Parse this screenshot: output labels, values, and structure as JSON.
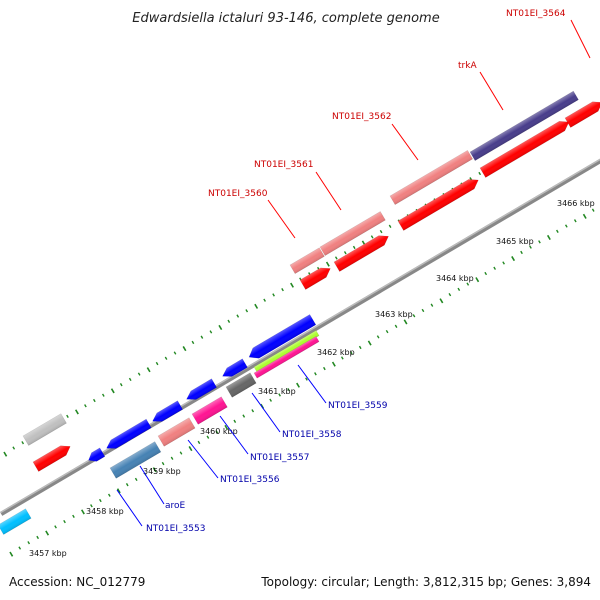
{
  "title": "Edwardsiella ictaluri 93-146, complete genome",
  "footer": {
    "accession": "Accession: NC_012779",
    "summary": "Topology: circular; Length: 3,812,315 bp; Genes: 3,894"
  },
  "kbp_labels": [
    "3457 kbp",
    "3458 kbp",
    "3459 kbp",
    "3460 kbp",
    "3461 kbp",
    "3462 kbp",
    "3463 kbp",
    "3464 kbp",
    "3465 kbp",
    "3466 kbp"
  ],
  "top_labels": [
    "NT01EI_3564",
    "trkA",
    "NT01EI_3562",
    "NT01EI_3561",
    "NT01EI_3560"
  ],
  "bottom_labels": [
    "NT01EI_3559",
    "NT01EI_3558",
    "NT01EI_3557",
    "NT01EI_3556",
    "aroE",
    "NT01EI_3553"
  ],
  "colors": {
    "label_top": "#cc0000",
    "label_bottom": "#0000aa",
    "tick": "#228822",
    "red": "#ff0000",
    "pink": "#f08080",
    "dark_purple": "#483d8b",
    "blue": "#0000ff",
    "steel": "#4682b4",
    "magenta": "#ff1493",
    "lime": "#adff2f",
    "cyan": "#00bfff",
    "gray": "#c0c0c0",
    "dark_gray": "#555555"
  }
}
